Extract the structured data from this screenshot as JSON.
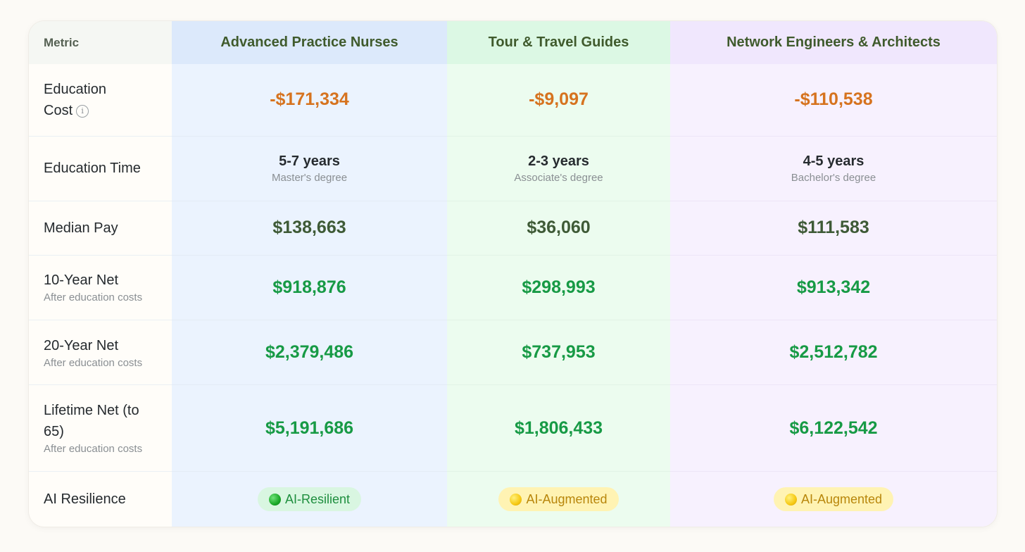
{
  "header": {
    "metric": "Metric",
    "careers": [
      "Advanced Practice Nurses",
      "Tour & Travel Guides",
      "Network Engineers & Architects"
    ]
  },
  "rows": {
    "education_cost": {
      "label": "Education Cost",
      "info_icon": "i",
      "values": [
        "-$171,334",
        "-$9,097",
        "-$110,538"
      ]
    },
    "education_time": {
      "label": "Education Time",
      "values": [
        "5-7 years",
        "2-3 years",
        "4-5 years"
      ],
      "degrees": [
        "Master's degree",
        "Associate's degree",
        "Bachelor's degree"
      ]
    },
    "median_pay": {
      "label": "Median Pay",
      "values": [
        "$138,663",
        "$36,060",
        "$111,583"
      ]
    },
    "net_10": {
      "label": "10-Year Net",
      "sub": "After education costs",
      "values": [
        "$918,876",
        "$298,993",
        "$913,342"
      ]
    },
    "net_20": {
      "label": "20-Year Net",
      "sub": "After education costs",
      "values": [
        "$2,379,486",
        "$737,953",
        "$2,512,782"
      ]
    },
    "net_lifetime": {
      "label": "Lifetime Net (to 65)",
      "sub": "After education costs",
      "values": [
        "$5,191,686",
        "$1,806,433",
        "$6,122,542"
      ]
    },
    "ai_resilience": {
      "label": "AI Resilience",
      "values": [
        "AI-Resilient",
        "AI-Augmented",
        "AI-Augmented"
      ],
      "icons": [
        "green-circle-icon",
        "yellow-circle-icon",
        "yellow-circle-icon"
      ]
    }
  },
  "colors": {
    "cost": "#d6731f",
    "pay": "#3e5a36",
    "net": "#179a45",
    "col1_bg": "#ebf3fe",
    "col2_bg": "#ecfcef",
    "col3_bg": "#f7f1fe"
  }
}
